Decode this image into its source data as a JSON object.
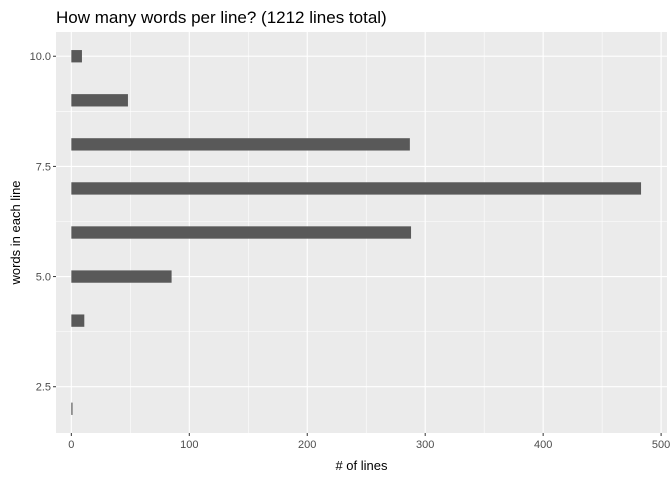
{
  "chart_data": {
    "type": "bar",
    "orientation": "horizontal",
    "title": "How many words per line? (1212 lines total)",
    "xlabel": "# of lines",
    "ylabel": "words in each line",
    "xlim": [
      -13,
      505
    ],
    "ylim": [
      1.45,
      10.55
    ],
    "x_ticks": [
      0,
      100,
      200,
      300,
      400,
      500
    ],
    "x_tick_labels": [
      "0",
      "100",
      "200",
      "300",
      "400",
      "500"
    ],
    "y_ticks": [
      2.5,
      5.0,
      7.5,
      10.0
    ],
    "y_tick_labels": [
      "2.5",
      "5.0",
      "7.5",
      "10.0"
    ],
    "bar_thickness": 0.28,
    "grid": true,
    "colors": {
      "panel": "#ebebeb",
      "grid": "#ffffff",
      "bar": "#595959"
    },
    "categories": [
      2,
      4,
      5,
      6,
      7,
      8,
      9,
      10
    ],
    "values": [
      1,
      11,
      85,
      288,
      483,
      287,
      48,
      9
    ]
  }
}
